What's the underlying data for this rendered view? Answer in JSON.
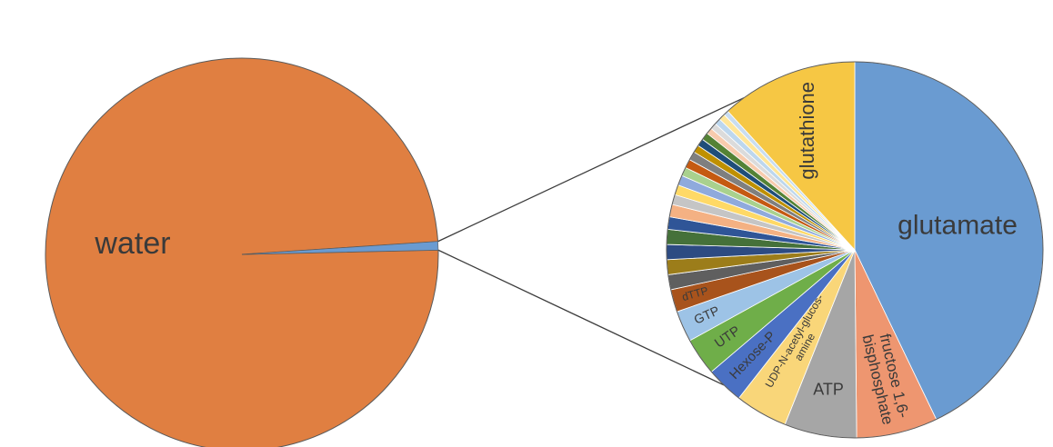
{
  "chart_data": [
    {
      "type": "pie",
      "title": "",
      "slices": [
        {
          "label": "water",
          "value": 99.3,
          "color": "#E07F41"
        },
        {
          "label": "",
          "value": 0.7,
          "color": "#6A9BD1"
        }
      ]
    },
    {
      "type": "pie",
      "title": "",
      "slices": [
        {
          "label": "glutamate",
          "value": 40.0,
          "color": "#6A9BD1"
        },
        {
          "label": "fructose 1,6-\nbisphosphate",
          "value": 6.5,
          "color": "#EE9670"
        },
        {
          "label": "ATP",
          "value": 5.8,
          "color": "#A6A6A6"
        },
        {
          "label": "UDP-N-acetyl-glucos-\namine",
          "value": 4.2,
          "color": "#F9D679"
        },
        {
          "label": "Hexose-P",
          "value": 3.0,
          "color": "#4A70C3"
        },
        {
          "label": "UTP",
          "value": 3.0,
          "color": "#6FAE49"
        },
        {
          "label": "GTP",
          "value": 2.5,
          "color": "#9DC3E6"
        },
        {
          "label": "dTTP",
          "value": 1.8,
          "color": "#A8531C"
        },
        {
          "label": "",
          "value": 1.2,
          "color": "#5F5F5F"
        },
        {
          "label": "",
          "value": 1.2,
          "color": "#9C7D1A"
        },
        {
          "label": "",
          "value": 1.2,
          "color": "#2D4B82"
        },
        {
          "label": "",
          "value": 1.2,
          "color": "#45713A"
        },
        {
          "label": "",
          "value": 1.0,
          "color": "#2F5597"
        },
        {
          "label": "",
          "value": 1.0,
          "color": "#F4B183"
        },
        {
          "label": "",
          "value": 0.8,
          "color": "#C5C5C5"
        },
        {
          "label": "",
          "value": 0.8,
          "color": "#FFD966"
        },
        {
          "label": "",
          "value": 0.8,
          "color": "#8FAADC"
        },
        {
          "label": "",
          "value": 0.7,
          "color": "#A9D18E"
        },
        {
          "label": "",
          "value": 0.7,
          "color": "#C55A11"
        },
        {
          "label": "",
          "value": 0.7,
          "color": "#7F7F7F"
        },
        {
          "label": "",
          "value": 0.6,
          "color": "#BF9000"
        },
        {
          "label": "",
          "value": 0.6,
          "color": "#1F4E79"
        },
        {
          "label": "",
          "value": 0.6,
          "color": "#548235"
        },
        {
          "label": "",
          "value": 0.5,
          "color": "#F8CBAD"
        },
        {
          "label": "",
          "value": 0.5,
          "color": "#DBDBDB"
        },
        {
          "label": "",
          "value": 0.5,
          "color": "#BDD7EE"
        },
        {
          "label": "",
          "value": 0.5,
          "color": "#FFE699"
        },
        {
          "label": "",
          "value": 0.4,
          "color": "#C9DDF0"
        },
        {
          "label": "glutathione",
          "value": 11.0,
          "color": "#F6C744"
        }
      ]
    }
  ]
}
